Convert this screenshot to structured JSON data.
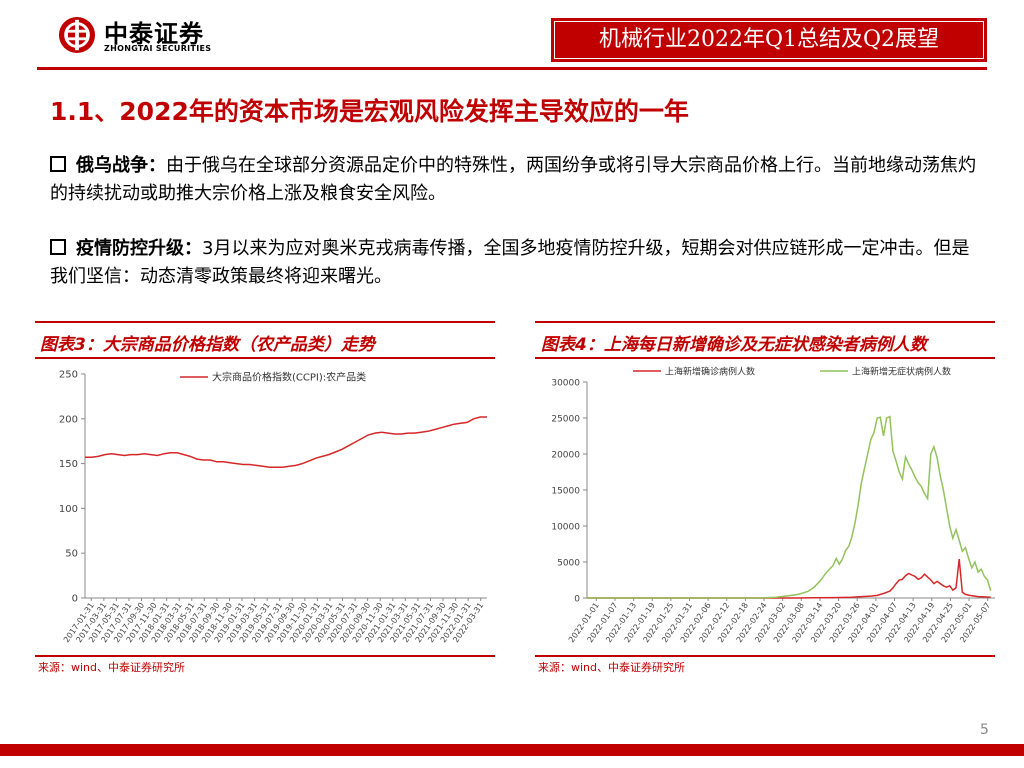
{
  "header": {
    "logo_cn": "中泰证券",
    "logo_en": "ZHONGTAI SECURITIES",
    "banner": "机械行业2022年Q1总结及Q2展望"
  },
  "section_title": "1.1、2022年的资本市场是宏观风险发挥主导效应的一年",
  "paragraphs": [
    {
      "lead": "俄乌战争：",
      "text": "由于俄乌在全球部分资源品定价中的特殊性，两国纷争或将引导大宗商品价格上行。当前地缘动荡焦灼的持续扰动或助推大宗价格上涨及粮食安全风险。"
    },
    {
      "lead": "疫情防控升级：",
      "text": "3月以来为应对奥米克戎病毒传播，全国多地疫情防控升级，短期会对供应链形成一定冲击。但是我们坚信：动态清零政策最终将迎来曙光。"
    }
  ],
  "chart_titles": [
    "图表3：大宗商品价格指数（农产品类）走势",
    "图表4：上海每日新增确诊及无症状感染者病例人数"
  ],
  "sources": [
    "来源：wind、中泰证券研究所",
    "来源：wind、中泰证券研究所"
  ],
  "page_number": "5",
  "colors": {
    "accent": "#c00000",
    "red_series": "#d62728",
    "green_series": "#92c25a"
  },
  "chart_data": [
    {
      "type": "line",
      "title": "",
      "ylim": [
        0,
        250
      ],
      "yticks": [
        0,
        50,
        100,
        150,
        200,
        250
      ],
      "xticks": [
        "2017-01-31",
        "2017-03-31",
        "2017-05-31",
        "2017-07-31",
        "2017-09-30",
        "2017-11-30",
        "2018-01-31",
        "2018-03-31",
        "2018-05-31",
        "2018-07-31",
        "2018-09-30",
        "2018-11-30",
        "2019-01-31",
        "2019-03-31",
        "2019-05-31",
        "2019-07-31",
        "2019-09-30",
        "2019-11-30",
        "2020-01-31",
        "2020-03-31",
        "2020-05-31",
        "2020-07-31",
        "2020-09-30",
        "2020-11-30",
        "2021-01-31",
        "2021-03-31",
        "2021-05-31",
        "2021-07-31",
        "2021-09-30",
        "2021-11-30",
        "2022-01-31",
        "2022-03-31"
      ],
      "legend_position": "top",
      "series": [
        {
          "name": "大宗商品价格指数(CCPI):农产品类",
          "color": "#d62728",
          "values": [
            157,
            157,
            158,
            160,
            161,
            160,
            159,
            160,
            160,
            161,
            160,
            159,
            161,
            162,
            162,
            160,
            158,
            155,
            154,
            154,
            152,
            152,
            151,
            150,
            149,
            149,
            148,
            147,
            146,
            146,
            146,
            147,
            148,
            150,
            153,
            156,
            158,
            160,
            163,
            166,
            170,
            174,
            178,
            182,
            184,
            185,
            184,
            183,
            183,
            184,
            184,
            185,
            186,
            188,
            190,
            192,
            194,
            195,
            196,
            200,
            202,
            202
          ]
        }
      ]
    },
    {
      "type": "line",
      "title": "",
      "ylim": [
        0,
        30000
      ],
      "yticks": [
        0,
        5000,
        10000,
        15000,
        20000,
        25000,
        30000
      ],
      "xticks": [
        "2022-01-01",
        "2022-01-07",
        "2022-01-13",
        "2022-01-19",
        "2022-01-25",
        "2022-01-31",
        "2022-02-06",
        "2022-02-12",
        "2022-02-18",
        "2022-02-24",
        "2022-03-02",
        "2022-03-08",
        "2022-03-14",
        "2022-03-20",
        "2022-03-26",
        "2022-04-01",
        "2022-04-07",
        "2022-04-13",
        "2022-04-19",
        "2022-04-25",
        "2022-05-01",
        "2022-05-07"
      ],
      "legend_position": "top",
      "series": [
        {
          "name": "上海新增确诊病例人数",
          "color": "#d62728",
          "points": [
            [
              0,
              0
            ],
            [
              60,
              0
            ],
            [
              66,
              5
            ],
            [
              72,
              30
            ],
            [
              78,
              60
            ],
            [
              84,
              110
            ],
            [
              87,
              200
            ],
            [
              90,
              260
            ],
            [
              92,
              360
            ],
            [
              94,
              620
            ],
            [
              96,
              950
            ],
            [
              97,
              1400
            ],
            [
              98,
              2000
            ],
            [
              99,
              2500
            ],
            [
              100,
              2600
            ],
            [
              101,
              3100
            ],
            [
              102,
              3400
            ],
            [
              103,
              3200
            ],
            [
              104,
              3000
            ],
            [
              105,
              2600
            ],
            [
              106,
              2800
            ],
            [
              107,
              3300
            ],
            [
              108,
              2900
            ],
            [
              109,
              2500
            ],
            [
              110,
              2000
            ],
            [
              111,
              2300
            ],
            [
              112,
              2000
            ],
            [
              113,
              1700
            ],
            [
              114,
              1500
            ],
            [
              115,
              1700
            ],
            [
              116,
              1100
            ],
            [
              117,
              1400
            ],
            [
              118,
              5400
            ],
            [
              119,
              800
            ],
            [
              120,
              500
            ],
            [
              122,
              300
            ],
            [
              124,
              200
            ],
            [
              126,
              150
            ],
            [
              128,
              100
            ]
          ]
        },
        {
          "name": "上海新增无症状病例人数",
          "color": "#92c25a",
          "points": [
            [
              0,
              0
            ],
            [
              55,
              0
            ],
            [
              60,
              100
            ],
            [
              64,
              300
            ],
            [
              67,
              500
            ],
            [
              70,
              900
            ],
            [
              72,
              1500
            ],
            [
              74,
              2400
            ],
            [
              76,
              3600
            ],
            [
              78,
              4500
            ],
            [
              79,
              5500
            ],
            [
              80,
              4700
            ],
            [
              81,
              5400
            ],
            [
              82,
              6600
            ],
            [
              83,
              7200
            ],
            [
              84,
              8500
            ],
            [
              85,
              10500
            ],
            [
              86,
              13000
            ],
            [
              87,
              16000
            ],
            [
              88,
              18000
            ],
            [
              89,
              20000
            ],
            [
              90,
              22000
            ],
            [
              91,
              23000
            ],
            [
              92,
              25000
            ],
            [
              93,
              25100
            ],
            [
              94,
              22500
            ],
            [
              95,
              25000
            ],
            [
              96,
              25200
            ],
            [
              97,
              20400
            ],
            [
              98,
              19000
            ],
            [
              99,
              17500
            ],
            [
              100,
              16500
            ],
            [
              101,
              19600
            ],
            [
              102,
              18600
            ],
            [
              103,
              17800
            ],
            [
              104,
              16800
            ],
            [
              105,
              16000
            ],
            [
              106,
              15500
            ],
            [
              107,
              14500
            ],
            [
              108,
              13800
            ],
            [
              109,
              20000
            ],
            [
              110,
              21000
            ],
            [
              111,
              19500
            ],
            [
              112,
              17000
            ],
            [
              113,
              15000
            ],
            [
              114,
              12500
            ],
            [
              115,
              10000
            ],
            [
              116,
              8300
            ],
            [
              117,
              9500
            ],
            [
              118,
              8000
            ],
            [
              119,
              6500
            ],
            [
              120,
              7000
            ],
            [
              121,
              5500
            ],
            [
              122,
              4200
            ],
            [
              123,
              5000
            ],
            [
              124,
              3600
            ],
            [
              125,
              4000
            ],
            [
              126,
              3000
            ],
            [
              127,
              2500
            ],
            [
              128,
              1000
            ]
          ]
        }
      ]
    }
  ]
}
